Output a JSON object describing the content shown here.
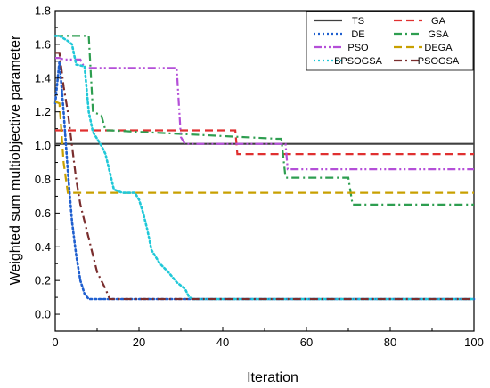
{
  "chart_data": {
    "type": "line",
    "title": "",
    "xlabel": "Iteration",
    "ylabel": "Weighted sum multiobjective parameter",
    "xlim": [
      0,
      100
    ],
    "ylim": [
      -0.1,
      1.8
    ],
    "xticks": [
      0,
      20,
      40,
      60,
      80,
      100
    ],
    "yticks": [
      0.0,
      0.2,
      0.4,
      0.6,
      0.8,
      1.0,
      1.2,
      1.4,
      1.6,
      1.8
    ],
    "grid": false,
    "legend_position": "top-right",
    "series": [
      {
        "name": "TS",
        "color": "#404040",
        "dash": "solid",
        "x": [
          0,
          1,
          2,
          100
        ],
        "y": [
          1.01,
          1.01,
          1.01,
          1.01
        ]
      },
      {
        "name": "GA",
        "color": "#e03030",
        "dash": "dash",
        "x": [
          0,
          1,
          2,
          43,
          43.5,
          44,
          100
        ],
        "y": [
          1.09,
          1.09,
          1.09,
          1.09,
          0.95,
          0.95,
          0.95
        ]
      },
      {
        "name": "DE",
        "color": "#1f5fcf",
        "dash": "dot",
        "x": [
          0,
          1,
          2,
          3,
          4,
          5,
          6,
          7,
          8,
          9,
          10,
          100
        ],
        "y": [
          1.25,
          1.5,
          1.2,
          0.85,
          0.55,
          0.35,
          0.2,
          0.12,
          0.09,
          0.09,
          0.09,
          0.09
        ]
      },
      {
        "name": "GSA",
        "color": "#2e9e50",
        "dash": "dashdot",
        "x": [
          0,
          2,
          8,
          9,
          10,
          11,
          12,
          13,
          53,
          54,
          55,
          70,
          71,
          100
        ],
        "y": [
          1.65,
          1.65,
          1.65,
          1.2,
          1.19,
          1.18,
          1.09,
          1.09,
          1.04,
          1.04,
          0.81,
          0.81,
          0.65,
          0.65
        ]
      },
      {
        "name": "PSO",
        "color": "#b44fd8",
        "dash": "dashdotdot",
        "x": [
          0,
          1,
          2,
          6,
          7,
          29,
          30,
          31,
          55,
          55.5,
          56,
          100
        ],
        "y": [
          1.52,
          1.52,
          1.51,
          1.51,
          1.46,
          1.46,
          1.05,
          1.01,
          1.01,
          0.86,
          0.86,
          0.86
        ]
      },
      {
        "name": "DEGA",
        "color": "#c8a000",
        "dash": "dash",
        "x": [
          0,
          1,
          2,
          3,
          100
        ],
        "y": [
          1.26,
          1.25,
          0.9,
          0.72,
          0.72
        ]
      },
      {
        "name": "BPSOGSA",
        "color": "#20c8d8",
        "dash": "dot",
        "x": [
          0,
          1,
          3,
          4,
          5,
          7,
          8,
          9,
          11,
          12,
          14,
          16,
          19,
          20,
          21,
          22,
          23,
          25,
          27,
          29,
          31,
          32,
          33,
          100
        ],
        "y": [
          1.65,
          1.65,
          1.62,
          1.6,
          1.48,
          1.47,
          1.2,
          1.08,
          1.0,
          0.95,
          0.74,
          0.72,
          0.72,
          0.68,
          0.6,
          0.5,
          0.38,
          0.3,
          0.25,
          0.19,
          0.15,
          0.1,
          0.09,
          0.09
        ]
      },
      {
        "name": "PSOGSA",
        "color": "#7a2e2e",
        "dash": "dashdot",
        "x": [
          0,
          1,
          2,
          3,
          4,
          5,
          6,
          7,
          8,
          9,
          10,
          11,
          12,
          13,
          14,
          100
        ],
        "y": [
          1.55,
          1.55,
          1.35,
          1.2,
          1.0,
          0.8,
          0.65,
          0.55,
          0.45,
          0.35,
          0.25,
          0.2,
          0.15,
          0.09,
          0.09,
          0.09
        ]
      }
    ]
  }
}
